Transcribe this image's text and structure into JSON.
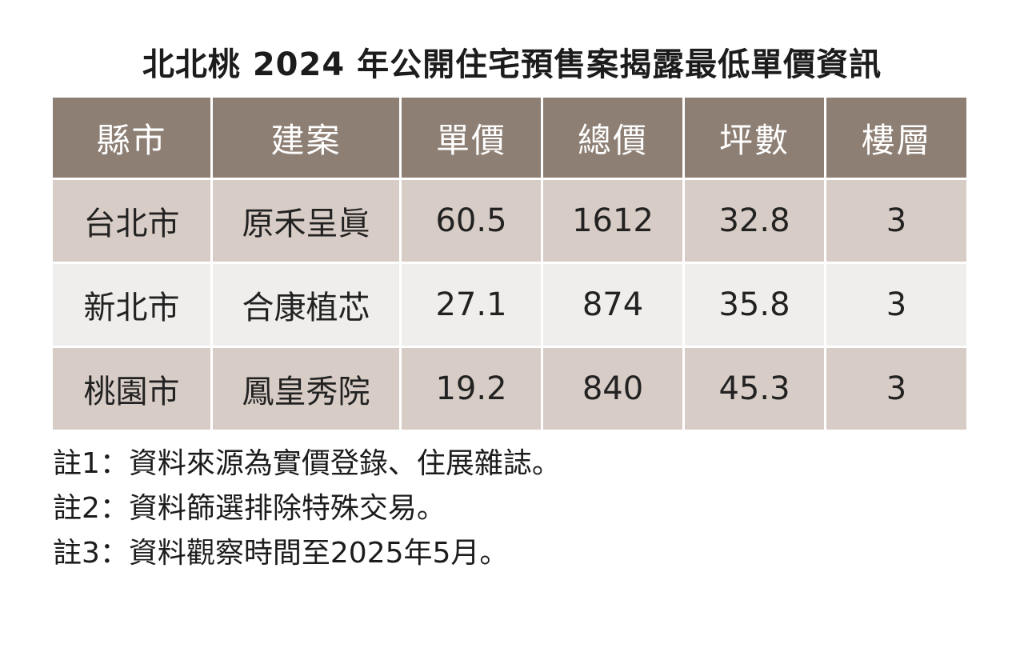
{
  "title": "北北桃 2024 年公開住宅預售案揭露最低單價資訊",
  "table": {
    "headers": [
      "縣市",
      "建案",
      "單價",
      "總價",
      "坪數",
      "樓層"
    ],
    "rows": [
      [
        "台北市",
        "原禾呈眞",
        "60.5",
        "1612",
        "32.8",
        "3"
      ],
      [
        "新北市",
        "合康植芯",
        "27.1",
        "874",
        "35.8",
        "3"
      ],
      [
        "桃園市",
        "鳳皇秀院",
        "19.2",
        "840",
        "45.3",
        "3"
      ]
    ]
  },
  "notes": [
    "註1：資料來源為實價登錄、住展雜誌。",
    "註2：資料篩選排除特殊交易。",
    "註3：資料觀察時間至2025年5月。"
  ],
  "colors": {
    "header_bg": "#8e7f74",
    "row_shade": "#d8cdc6",
    "row_light": "#efeeec"
  }
}
